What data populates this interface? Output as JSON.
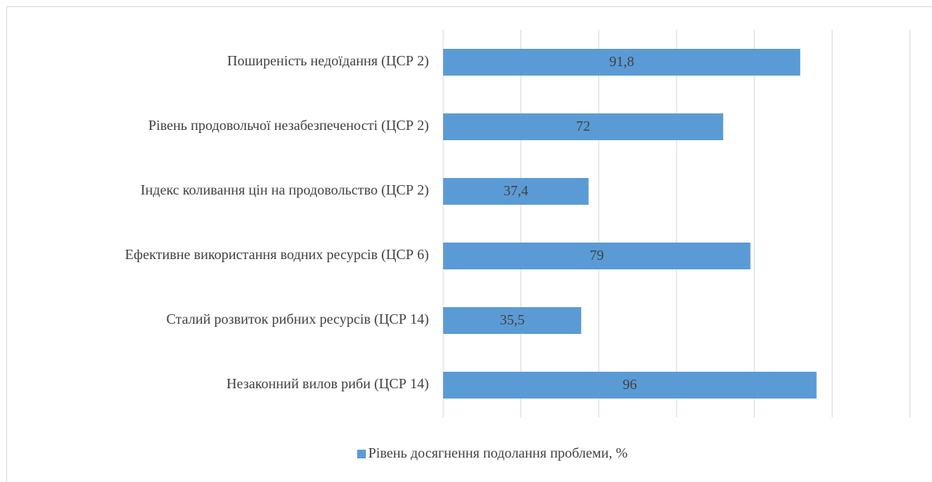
{
  "chart_data": {
    "type": "bar",
    "orientation": "horizontal",
    "categories": [
      "Поширеність недоїдання (ЦСР 2)",
      "Рівень продовольчої незабезпеченості (ЦСР 2)",
      "Індекс коливання цін на продовольство (ЦСР 2)",
      "Ефективне використання водних ресурсів (ЦСР 6)",
      "Сталий розвиток рибних ресурсів (ЦСР 14)",
      "Незаконний вилов риби (ЦСР 14)"
    ],
    "series": [
      {
        "name": "Рівень досягнення подолання проблеми, %",
        "color": "#5b9bd5",
        "values": [
          91.8,
          72,
          37.4,
          79,
          35.5,
          96
        ],
        "value_labels": [
          "91,8",
          "72",
          "37,4",
          "79",
          "35,5",
          "96"
        ]
      }
    ],
    "xlim": [
      0,
      120
    ],
    "xticks": [
      0,
      20,
      40,
      60,
      80,
      100,
      120
    ],
    "grid": true,
    "legend": "bottom"
  }
}
